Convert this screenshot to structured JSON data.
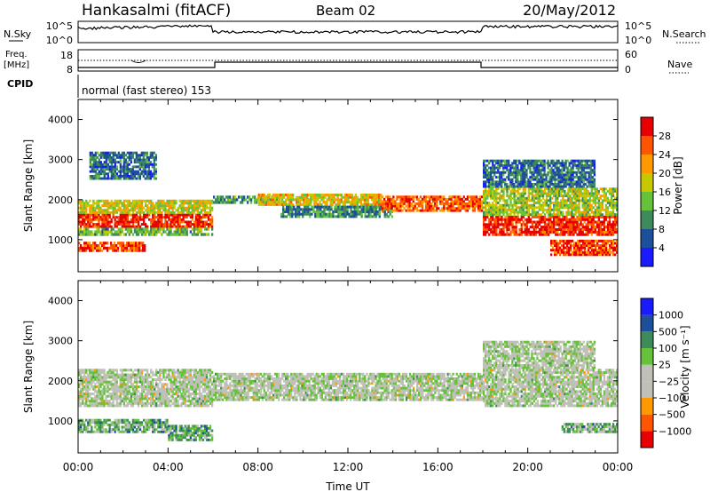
{
  "header": {
    "station": "Hankasalmi (fitACF)",
    "beam": "Beam 02",
    "date": "20/May/2012"
  },
  "sky_panel": {
    "left_label": "N.Sky",
    "right_label": "N.Search",
    "ticks_left": [
      "10^5",
      "10^0"
    ],
    "ticks_right": [
      "10^5",
      "10^0"
    ]
  },
  "freq_panel": {
    "label_line1": "Freq.",
    "label_line2": "[MHz]",
    "right_label": "Nave",
    "ticks_left": [
      "18",
      "8"
    ],
    "ticks_right": [
      "60",
      "0"
    ]
  },
  "cpid": {
    "label": "CPID",
    "mode": "normal (fast stereo) 153"
  },
  "x_axis": {
    "label": "Time UT",
    "ticks": [
      "00:00",
      "04:00",
      "08:00",
      "12:00",
      "16:00",
      "20:00",
      "00:00"
    ]
  },
  "colors": {
    "power_scale": [
      "#1a1aff",
      "#1e4f9a",
      "#3d8a5a",
      "#66c23a",
      "#c8c800",
      "#ff9900",
      "#ff5500",
      "#e60000"
    ],
    "velocity_scale": [
      "#e60000",
      "#ff5500",
      "#ff9900",
      "#c0c0b8",
      "#c0c0b8",
      "#66c23a",
      "#3d8a5a",
      "#1e4f9a",
      "#1a1aff"
    ]
  },
  "chart_data": [
    {
      "type": "heatmap",
      "name": "power",
      "ylabel": "Slant Range [km]",
      "xlabel": "",
      "xlim": [
        0,
        24
      ],
      "ylim": [
        200,
        4500
      ],
      "yticks": [
        "1000",
        "2000",
        "3000",
        "4000"
      ],
      "colorbar_label": "Power [dB]",
      "colorbar_ticks": [
        "4",
        "8",
        "12",
        "16",
        "20",
        "24",
        "28"
      ],
      "colorbar_range": [
        0,
        32
      ],
      "bands": [
        {
          "t0": 0.0,
          "t1": 6.0,
          "r0": 1300,
          "r1": 1650,
          "level": 0.9
        },
        {
          "t0": 0.0,
          "t1": 6.0,
          "r0": 1650,
          "r1": 2000,
          "level": 0.55
        },
        {
          "t0": 0.0,
          "t1": 6.0,
          "r0": 1100,
          "r1": 1300,
          "level": 0.4
        },
        {
          "t0": 0.0,
          "t1": 3.0,
          "r0": 700,
          "r1": 950,
          "level": 0.85
        },
        {
          "t0": 0.5,
          "t1": 3.5,
          "r0": 2500,
          "r1": 3200,
          "level": 0.25
        },
        {
          "t0": 6.0,
          "t1": 9.0,
          "r0": 1900,
          "r1": 2100,
          "level": 0.35
        },
        {
          "t0": 8.0,
          "t1": 13.5,
          "r0": 1850,
          "r1": 2150,
          "level": 0.6
        },
        {
          "t0": 9.0,
          "t1": 14.0,
          "r0": 1550,
          "r1": 1850,
          "level": 0.3
        },
        {
          "t0": 13.5,
          "t1": 18.0,
          "r0": 1700,
          "r1": 2100,
          "level": 0.8
        },
        {
          "t0": 18.0,
          "t1": 24.0,
          "r0": 1100,
          "r1": 1600,
          "level": 0.9
        },
        {
          "t0": 18.0,
          "t1": 24.0,
          "r0": 1600,
          "r1": 2300,
          "level": 0.5
        },
        {
          "t0": 18.0,
          "t1": 23.0,
          "r0": 2300,
          "r1": 3000,
          "level": 0.25
        },
        {
          "t0": 21.0,
          "t1": 24.0,
          "r0": 600,
          "r1": 1000,
          "level": 0.85
        }
      ]
    },
    {
      "type": "heatmap",
      "name": "velocity",
      "ylabel": "Slant Range [km]",
      "xlabel": "Time UT",
      "xlim": [
        0,
        24
      ],
      "ylim": [
        200,
        4500
      ],
      "yticks": [
        "1000",
        "2000",
        "3000",
        "4000"
      ],
      "colorbar_label": "Velocity [m s⁻¹]",
      "colorbar_ticks": [
        "1000",
        "500",
        "100",
        "25",
        "−25",
        "−100",
        "−500",
        "−1000"
      ],
      "bands": [
        {
          "t0": 0.0,
          "t1": 6.0,
          "r0": 1350,
          "r1": 2300,
          "level": 0.5
        },
        {
          "t0": 0.0,
          "t1": 4.0,
          "r0": 700,
          "r1": 1050,
          "level": 0.65
        },
        {
          "t0": 4.0,
          "t1": 6.0,
          "r0": 500,
          "r1": 900,
          "level": 0.65
        },
        {
          "t0": 6.0,
          "t1": 18.0,
          "r0": 1500,
          "r1": 2200,
          "level": 0.5
        },
        {
          "t0": 18.0,
          "t1": 24.0,
          "r0": 1350,
          "r1": 2300,
          "level": 0.5
        },
        {
          "t0": 21.5,
          "t1": 24.0,
          "r0": 700,
          "r1": 950,
          "level": 0.62
        },
        {
          "t0": 18.0,
          "t1": 23.0,
          "r0": 2300,
          "r1": 3000,
          "level": 0.5
        }
      ]
    }
  ]
}
